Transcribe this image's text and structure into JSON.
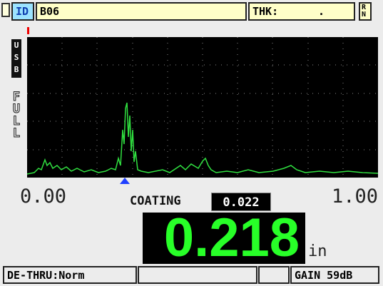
{
  "header": {
    "id_label": "ID",
    "id_value": "B06",
    "thk_label": "THK:",
    "thk_value": ".",
    "flag": [
      "R",
      "N"
    ]
  },
  "side": {
    "usb": [
      "U",
      "S",
      "B"
    ],
    "range": [
      "F",
      "U",
      "L",
      "L"
    ]
  },
  "scale": {
    "min": "0.00",
    "max": "1.00"
  },
  "coating": {
    "label": "COATING",
    "value": "0.022"
  },
  "reading": {
    "value": "0.218",
    "unit": "in"
  },
  "status": {
    "mode": "DE-THRU:Norm",
    "gain": "GAIN 59dB"
  }
}
